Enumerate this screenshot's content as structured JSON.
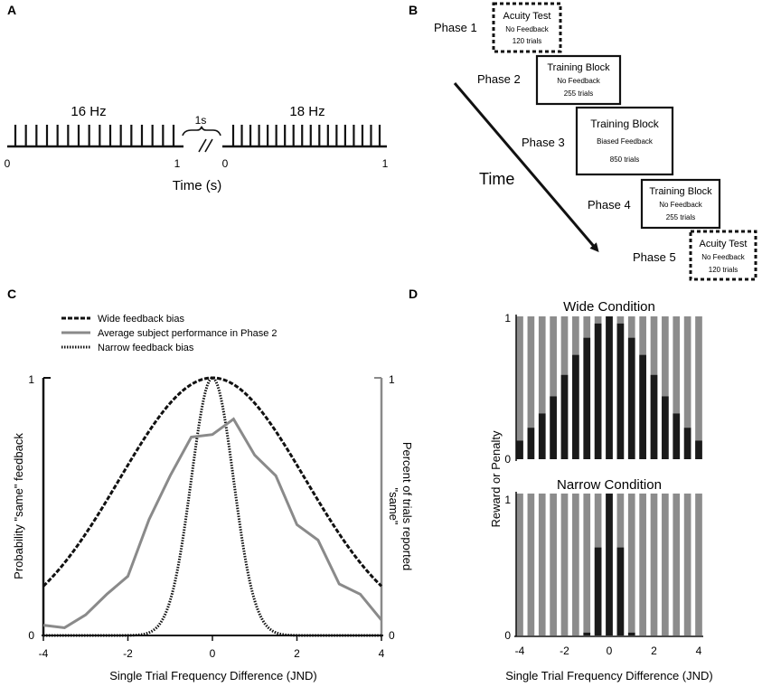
{
  "panels": {
    "a": {
      "label": "A",
      "left_rate": "16 Hz",
      "right_rate": "18 Hz",
      "gap_label": "1s",
      "tick_left_start": "0",
      "tick_left_end": "1",
      "tick_right_start": "0",
      "tick_right_end": "1",
      "xlabel": "Time (s)",
      "left_pulse_count": 16,
      "right_pulse_count": 18
    },
    "b": {
      "label": "B",
      "time_label": "Time",
      "phases": [
        {
          "phase": "Phase 1",
          "title": "Acuity Test",
          "feedback": "No Feedback",
          "trials": "120 trials",
          "dashed": true
        },
        {
          "phase": "Phase 2",
          "title": "Training Block",
          "feedback": "No Feedback",
          "trials": "255 trials",
          "dashed": false
        },
        {
          "phase": "Phase 3",
          "title": "Training Block",
          "feedback": "Biased Feedback",
          "trials": "850 trials",
          "dashed": false
        },
        {
          "phase": "Phase 4",
          "title": "Training Block",
          "feedback": "No Feedback",
          "trials": "255 trials",
          "dashed": false
        },
        {
          "phase": "Phase 5",
          "title": "Acuity Test",
          "feedback": "No Feedback",
          "trials": "120 trials",
          "dashed": true
        }
      ]
    },
    "c": {
      "label": "C"
    },
    "d": {
      "label": "D"
    }
  },
  "chart_data": [
    {
      "panel": "C",
      "type": "line",
      "xlabel": "Single Trial Frequency Difference (JND)",
      "ylabel_left": "Probability \"same\" feedback",
      "ylabel_right_line1": "Percent of trials reported",
      "ylabel_right_line2": "\"same\"",
      "xlim": [
        -4,
        4
      ],
      "ylim": [
        0,
        1
      ],
      "x_ticks": [
        "-4",
        "-2",
        "0",
        "2",
        "4"
      ],
      "y_ticks_left": [
        "0",
        "1"
      ],
      "y_ticks_right": [
        "0",
        "1"
      ],
      "legend": [
        "Wide feedback bias",
        "Average subject performance in Phase 2",
        "Narrow feedback bias"
      ],
      "series": [
        {
          "name": "Wide feedback bias",
          "style": "dashed",
          "color": "#111111",
          "gaussian_sigma": 2.2,
          "peak": 1.0
        },
        {
          "name": "Narrow feedback bias",
          "style": "dotted",
          "color": "#111111",
          "gaussian_sigma": 0.5,
          "peak": 1.0
        },
        {
          "name": "Average subject performance in Phase 2",
          "style": "solid",
          "color": "#8a8a8a",
          "x": [
            -4,
            -3.5,
            -3,
            -2.5,
            -2,
            -1.5,
            -1,
            -0.5,
            0,
            0.5,
            1,
            1.5,
            2,
            2.5,
            3,
            3.5,
            4
          ],
          "y": [
            0.04,
            0.03,
            0.08,
            0.16,
            0.23,
            0.45,
            0.62,
            0.77,
            0.78,
            0.84,
            0.7,
            0.62,
            0.43,
            0.37,
            0.2,
            0.16,
            0.06
          ]
        }
      ]
    },
    {
      "panel": "D",
      "type": "bar",
      "title": "Wide Condition",
      "ylabel": "Reward or Penalty",
      "xlabel": "",
      "xlim": [
        -4,
        4
      ],
      "ylim": [
        0,
        1
      ],
      "y_ticks": [
        "0",
        "1"
      ],
      "x": [
        -4,
        -3.5,
        -3,
        -2.5,
        -2,
        -1.5,
        -1,
        -0.5,
        0,
        0.5,
        1,
        1.5,
        2,
        2.5,
        3,
        3.5,
        4
      ],
      "reward": [
        0.13,
        0.22,
        0.32,
        0.44,
        0.59,
        0.73,
        0.85,
        0.95,
        1.0,
        0.95,
        0.85,
        0.73,
        0.59,
        0.44,
        0.32,
        0.22,
        0.13
      ],
      "reward_color": "#1a1a1a",
      "penalty_color": "#8c8c8c"
    },
    {
      "panel": "D",
      "type": "bar",
      "title": "Narrow Condition",
      "ylabel": "",
      "xlabel": "Single Trial Frequency Difference (JND)",
      "xlim": [
        -4,
        4
      ],
      "ylim": [
        0,
        1
      ],
      "y_ticks": [
        "0",
        "1"
      ],
      "x_ticks": [
        "-4",
        "-2",
        "0",
        "2",
        "4"
      ],
      "x": [
        -4,
        -3.5,
        -3,
        -2.5,
        -2,
        -1.5,
        -1,
        -0.5,
        0,
        0.5,
        1,
        1.5,
        2,
        2.5,
        3,
        3.5,
        4
      ],
      "reward": [
        0,
        0,
        0,
        0,
        0,
        0,
        0.02,
        0.62,
        1.0,
        0.62,
        0.02,
        0,
        0,
        0,
        0,
        0,
        0
      ],
      "reward_color": "#1a1a1a",
      "penalty_color": "#8c8c8c"
    }
  ]
}
